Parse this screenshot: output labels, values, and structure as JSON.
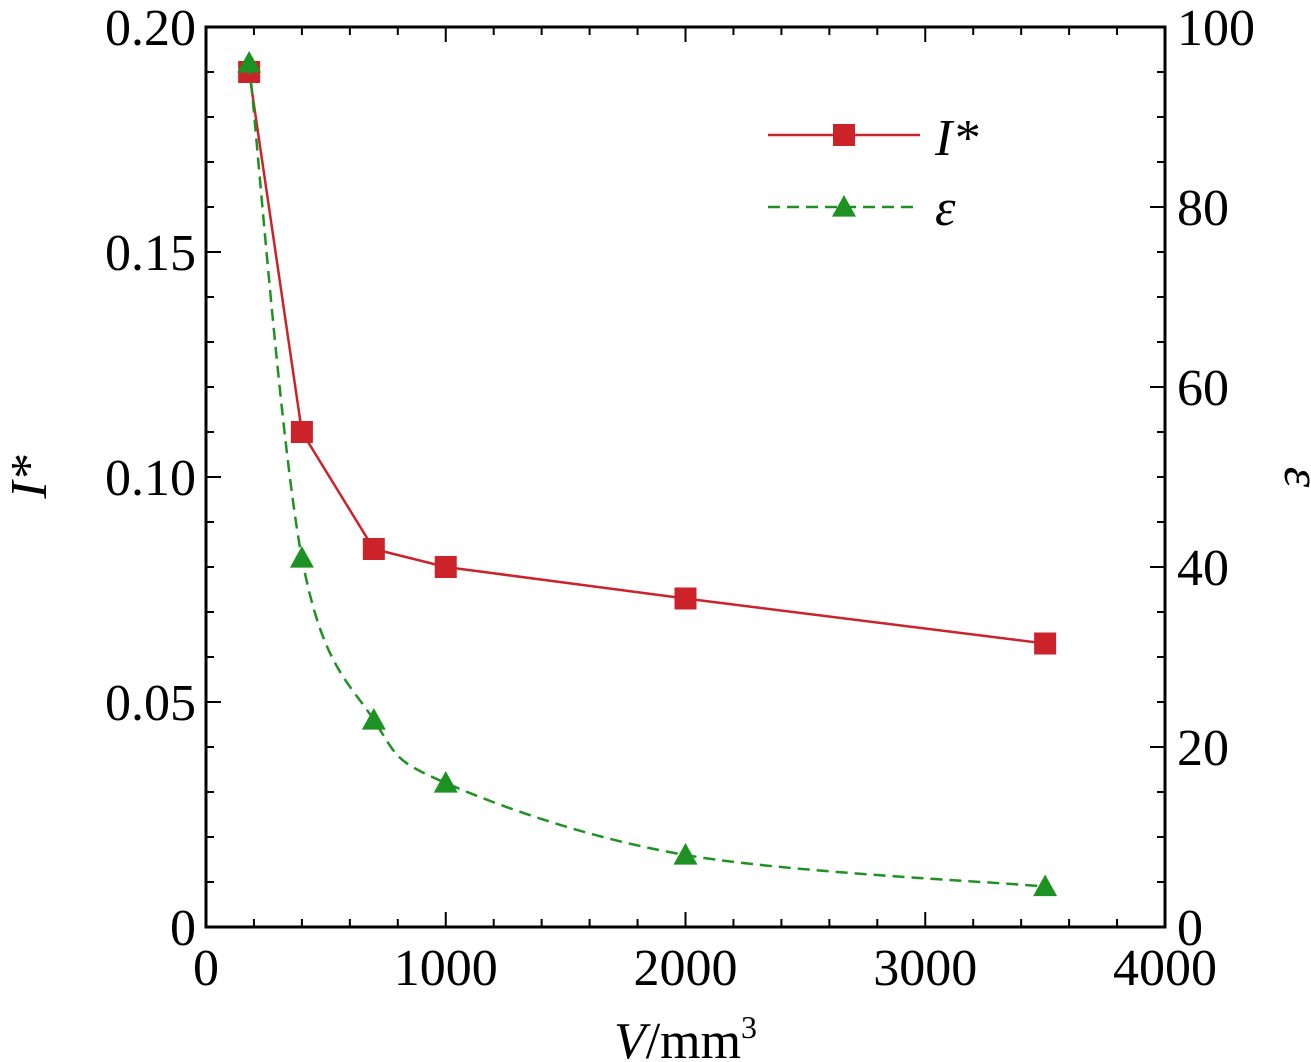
{
  "chart_data": {
    "type": "line",
    "xlabel": {
      "italic": "V",
      "rest": "/mm",
      "sup": "3"
    },
    "ylabel_left": {
      "text": "I*"
    },
    "ylabel_right": {
      "text": "ε"
    },
    "xlim": [
      0,
      4000
    ],
    "ylim_left": [
      0,
      0.2
    ],
    "ylim_right": [
      0,
      100
    ],
    "x_ticks": [
      0,
      1000,
      2000,
      3000,
      4000
    ],
    "x_tick_labels": [
      "0",
      "1000",
      "2000",
      "3000",
      "4000"
    ],
    "y_left_ticks": [
      0,
      0.05,
      0.1,
      0.15,
      0.2
    ],
    "y_left_tick_labels": [
      "0",
      "0.05",
      "0.10",
      "0.15",
      "0.20"
    ],
    "y_right_ticks": [
      0,
      20,
      40,
      60,
      80,
      100
    ],
    "y_right_tick_labels": [
      "0",
      "20",
      "40",
      "60",
      "80",
      "100"
    ],
    "grid": false,
    "legend_position": "top-right",
    "series": [
      {
        "name": "I*",
        "axis": "left",
        "color": "#cc2229",
        "marker": "square",
        "line_style": "solid",
        "x": [
          180,
          400,
          700,
          1000,
          2000,
          3500
        ],
        "y": [
          0.19,
          0.11,
          0.084,
          0.08,
          0.073,
          0.063
        ]
      },
      {
        "name": "ε",
        "axis": "right",
        "color": "#1e9123",
        "marker": "triangle",
        "line_style": "dashed",
        "x": [
          180,
          400,
          700,
          1000,
          2000,
          3500
        ],
        "y": [
          96,
          41,
          23,
          16,
          8,
          4.5
        ]
      }
    ]
  }
}
